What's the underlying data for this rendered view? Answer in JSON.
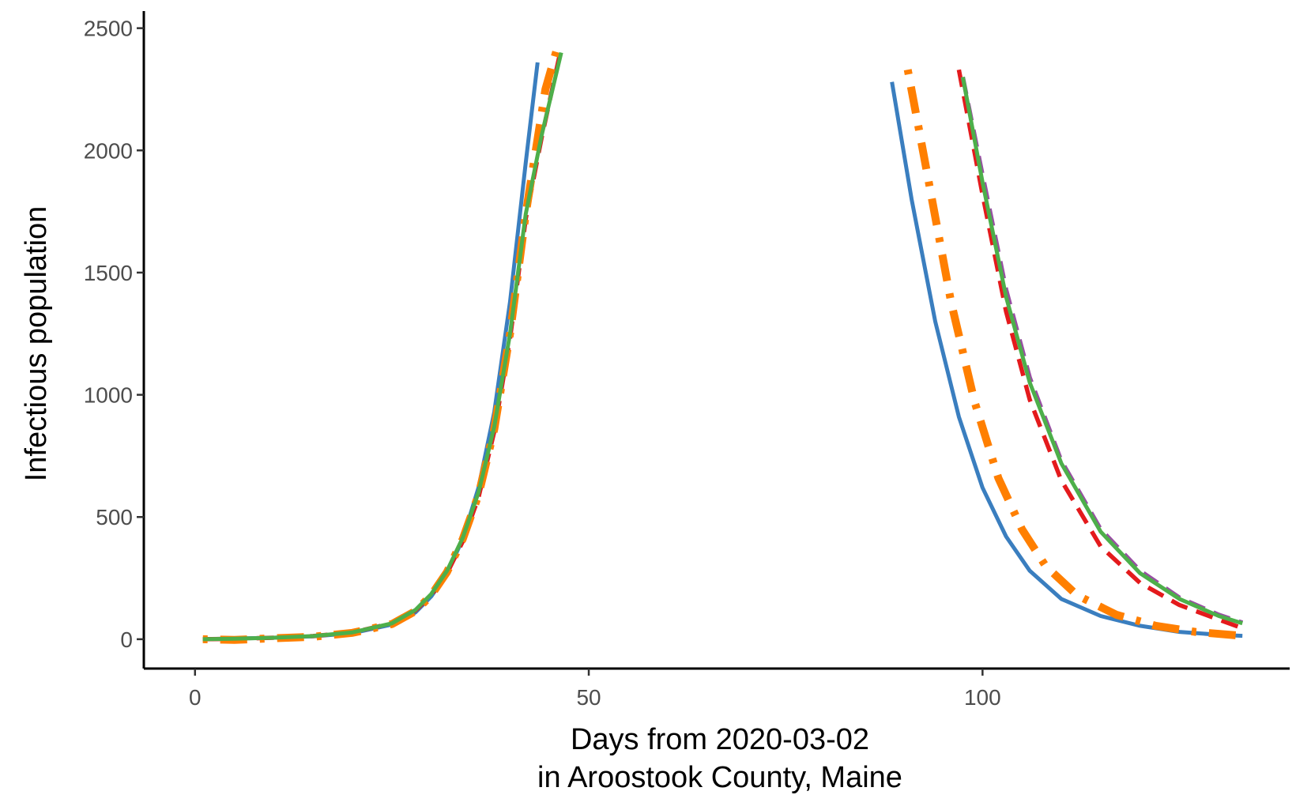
{
  "chart_data": {
    "type": "line",
    "xlabel_line1": "Days from 2020-03-02",
    "xlabel_line2": "in Aroostook County, Maine",
    "ylabel": "Infectious population",
    "xlim": [
      -6.5,
      139
    ],
    "ylim": [
      -120,
      2570
    ],
    "x_ticks": [
      0,
      50,
      100
    ],
    "x_tick_labels": [
      "0",
      "50",
      "100"
    ],
    "y_ticks": [
      0,
      500,
      1000,
      1500,
      2000,
      2500
    ],
    "y_tick_labels": [
      "0",
      "500",
      "1000",
      "1500",
      "2000",
      "2500"
    ],
    "grid": false,
    "legend": "none",
    "series": [
      {
        "color": "#3a7ebf",
        "style": "solid",
        "segments": [
          [
            [
              1,
              0
            ],
            [
              5,
              3
            ],
            [
              10,
              6
            ],
            [
              15,
              12
            ],
            [
              20,
              25
            ],
            [
              25,
              60
            ],
            [
              28,
              110
            ],
            [
              30,
              175
            ],
            [
              32,
              270
            ],
            [
              34,
              410
            ],
            [
              36,
              620
            ],
            [
              38,
              930
            ],
            [
              40,
              1380
            ],
            [
              42,
              1950
            ],
            [
              43.5,
              2360
            ]
          ],
          [
            [
              88.5,
              2280
            ],
            [
              91,
              1800
            ],
            [
              94,
              1300
            ],
            [
              97,
              910
            ],
            [
              100,
              620
            ],
            [
              103,
              420
            ],
            [
              106,
              280
            ],
            [
              110,
              165
            ],
            [
              115,
              95
            ],
            [
              120,
              55
            ],
            [
              125,
              30
            ],
            [
              130,
              18
            ],
            [
              133,
              14
            ]
          ]
        ]
      },
      {
        "color": "#e41a1c",
        "style": "dashed",
        "segments": [
          [
            [
              1,
              0
            ],
            [
              5,
              2
            ],
            [
              10,
              6
            ],
            [
              15,
              13
            ],
            [
              20,
              28
            ],
            [
              25,
              65
            ],
            [
              28,
              118
            ],
            [
              30,
              180
            ],
            [
              32,
              270
            ],
            [
              34,
              400
            ],
            [
              36,
              580
            ],
            [
              38,
              850
            ],
            [
              40,
              1230
            ],
            [
              42,
              1720
            ],
            [
              44,
              2050
            ],
            [
              46.5,
              2420
            ]
          ],
          [
            [
              97,
              2330
            ],
            [
              100,
              1820
            ],
            [
              103,
              1340
            ],
            [
              106,
              980
            ],
            [
              110,
              650
            ],
            [
              115,
              380
            ],
            [
              120,
              230
            ],
            [
              125,
              140
            ],
            [
              130,
              80
            ],
            [
              133,
              45
            ]
          ]
        ]
      },
      {
        "color": "#984ea3",
        "style": "dashed",
        "segments": [
          [
            [
              97.5,
              2300
            ],
            [
              100,
              1900
            ],
            [
              103,
              1430
            ],
            [
              106,
              1070
            ],
            [
              110,
              730
            ],
            [
              115,
              450
            ],
            [
              120,
              280
            ],
            [
              125,
              170
            ],
            [
              130,
              100
            ],
            [
              133,
              68
            ]
          ]
        ]
      },
      {
        "color": "#ff7f00",
        "style": "dotdash",
        "segments": [
          [
            [
              1,
              0
            ],
            [
              5,
              -3
            ],
            [
              10,
              4
            ],
            [
              15,
              10
            ],
            [
              20,
              26
            ],
            [
              25,
              62
            ],
            [
              28,
              115
            ],
            [
              30,
              180
            ],
            [
              32,
              275
            ],
            [
              34,
              410
            ],
            [
              36,
              590
            ],
            [
              38,
              860
            ],
            [
              40,
              1250
            ],
            [
              42,
              1740
            ],
            [
              44.5,
              2250
            ],
            [
              46,
              2420
            ]
          ],
          [
            [
              90.5,
              2330
            ],
            [
              93,
              1900
            ],
            [
              96,
              1380
            ],
            [
              99,
              970
            ],
            [
              102,
              660
            ],
            [
              105,
              450
            ],
            [
              108,
              300
            ],
            [
              112,
              180
            ],
            [
              117,
              100
            ],
            [
              122,
              55
            ],
            [
              127,
              30
            ],
            [
              133,
              14
            ]
          ]
        ]
      },
      {
        "color": "#4daf4a",
        "style": "solid",
        "segments": [
          [
            [
              1,
              0
            ],
            [
              5,
              2
            ],
            [
              10,
              6
            ],
            [
              15,
              13
            ],
            [
              20,
              28
            ],
            [
              25,
              65
            ],
            [
              28,
              120
            ],
            [
              30,
              185
            ],
            [
              32,
              280
            ],
            [
              34,
              415
            ],
            [
              36,
              600
            ],
            [
              38,
              870
            ],
            [
              40,
              1250
            ],
            [
              42,
              1740
            ],
            [
              44,
              2060
            ],
            [
              46.5,
              2400
            ]
          ],
          [
            [
              97.5,
              2300
            ],
            [
              100,
              1870
            ],
            [
              103,
              1400
            ],
            [
              106,
              1050
            ],
            [
              110,
              720
            ],
            [
              115,
              440
            ],
            [
              120,
              270
            ],
            [
              125,
              165
            ],
            [
              130,
              95
            ],
            [
              133,
              65
            ]
          ]
        ]
      }
    ]
  }
}
